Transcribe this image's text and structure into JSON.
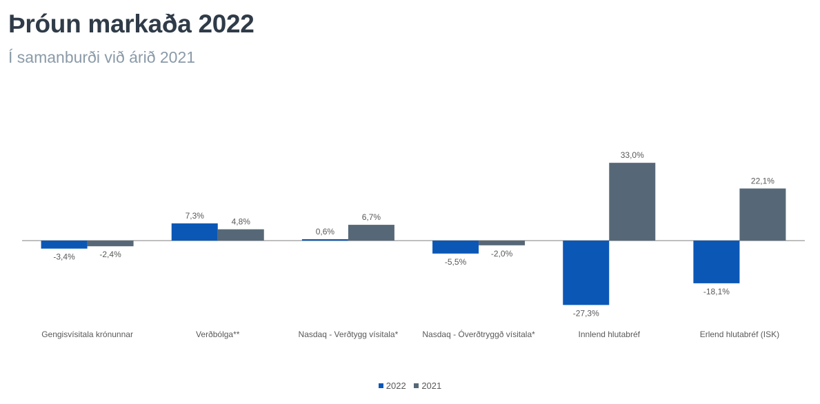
{
  "title": "Þróun markaða 2022",
  "subtitle": "Í samanburði við árið 2021",
  "chart_data": {
    "type": "bar",
    "categories": [
      "Gengisvísitala krónunnar",
      "Verðbólga**",
      "Nasdaq - Verðtygg vísitala*",
      "Nasdaq - Óverðtryggð vísitala*",
      "Innlend hlutabréf",
      "Erlend hlutabréf (ISK)"
    ],
    "series": [
      {
        "name": "2022",
        "color": "#0b57b6",
        "values": [
          -3.4,
          7.3,
          0.6,
          -5.5,
          -27.3,
          -18.1
        ],
        "labels": [
          "-3,4%",
          "7,3%",
          "0,6%",
          "-5,5%",
          "-27,3%",
          "-18,1%"
        ]
      },
      {
        "name": "2021",
        "color": "#566878",
        "values": [
          -2.4,
          4.8,
          6.7,
          -2.0,
          33.0,
          22.1
        ],
        "labels": [
          "-2,4%",
          "4,8%",
          "6,7%",
          "-2,0%",
          "33,0%",
          "22,1%"
        ]
      }
    ],
    "legend_position": "bottom",
    "grid": false
  }
}
